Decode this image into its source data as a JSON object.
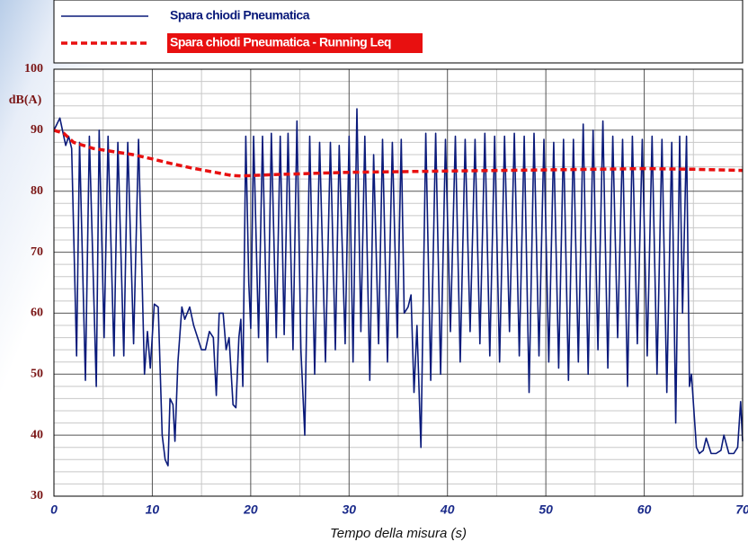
{
  "chart_data": {
    "type": "line",
    "xlabel": "Tempo della misura (s)",
    "ylabel": "dB(A)",
    "xlim": [
      0,
      70
    ],
    "ylim": [
      30,
      100
    ],
    "xticks": [
      0,
      10,
      20,
      30,
      40,
      50,
      60,
      70
    ],
    "yticks": [
      30,
      40,
      50,
      60,
      70,
      80,
      90,
      100
    ],
    "x_minor_ticks": [
      5,
      15,
      25,
      35,
      45,
      55,
      65
    ],
    "y_minor_ticks": [
      32,
      34,
      36,
      38,
      42,
      44,
      46,
      48,
      52,
      54,
      56,
      58,
      62,
      64,
      66,
      68,
      72,
      74,
      76,
      78,
      82,
      84,
      86,
      88,
      92,
      94,
      96,
      98
    ],
    "grid": true,
    "legend": "top",
    "series": [
      {
        "name": "Spara chiodi Pneumatica",
        "color": "#0a1a7a",
        "style": "solid",
        "x": [
          0,
          0.6,
          1.0,
          1.2,
          1.5,
          1.8,
          2.3,
          2.6,
          3.2,
          3.6,
          4.3,
          4.6,
          5.1,
          5.5,
          6.1,
          6.5,
          7.1,
          7.5,
          8.1,
          8.6,
          9.2,
          9.5,
          9.8,
          10.2,
          10.6,
          11.0,
          11.3,
          11.6,
          11.8,
          12.1,
          12.3,
          12.6,
          13.0,
          13.3,
          13.8,
          14.2,
          14.6,
          15.0,
          15.4,
          15.8,
          16.2,
          16.5,
          16.8,
          17.2,
          17.5,
          17.8,
          18.2,
          18.5,
          18.8,
          19.0,
          19.2,
          19.5,
          19.8,
          20.0,
          20.3,
          20.8,
          21.2,
          21.7,
          22.1,
          22.6,
          23.0,
          23.4,
          23.8,
          24.3,
          24.7,
          25.1,
          25.5,
          26.0,
          26.5,
          27.0,
          27.6,
          28.1,
          28.6,
          29.0,
          29.6,
          30.0,
          30.4,
          30.8,
          31.2,
          31.6,
          32.1,
          32.5,
          33.0,
          33.4,
          33.9,
          34.4,
          34.9,
          35.3,
          35.6,
          36.0,
          36.3,
          36.6,
          36.9,
          37.3,
          37.8,
          38.3,
          38.8,
          39.3,
          39.8,
          40.3,
          40.8,
          41.3,
          41.8,
          42.3,
          42.8,
          43.3,
          43.8,
          44.3,
          44.8,
          45.3,
          45.8,
          46.3,
          46.8,
          47.3,
          47.8,
          48.3,
          48.8,
          49.3,
          49.8,
          50.3,
          50.8,
          51.3,
          51.8,
          52.3,
          52.8,
          53.3,
          53.8,
          54.3,
          54.8,
          55.3,
          55.8,
          56.3,
          56.8,
          57.3,
          57.8,
          58.3,
          58.8,
          59.3,
          59.8,
          60.3,
          60.8,
          61.3,
          61.8,
          62.3,
          62.8,
          63.2,
          63.6,
          63.9,
          64.3,
          64.6,
          64.8,
          65.3,
          65.6,
          66.0,
          66.3,
          66.8,
          67.3,
          67.8,
          68.1,
          68.6,
          69.1,
          69.5,
          69.8,
          70.0
        ],
        "values": [
          90,
          92,
          89,
          87.5,
          89,
          87,
          53,
          88,
          49,
          89,
          48,
          90,
          56,
          89,
          53,
          88,
          53,
          88,
          55,
          88.5,
          50,
          57,
          51,
          61.5,
          61,
          40,
          36,
          35,
          46,
          45,
          39,
          52,
          61,
          59,
          61,
          58,
          56,
          54,
          54,
          57,
          56,
          46.5,
          60,
          60,
          54,
          56,
          45,
          44.5,
          56,
          59,
          48,
          89,
          65,
          57.5,
          89,
          56,
          89,
          52,
          89.5,
          56,
          89,
          56.5,
          89.5,
          54,
          91.5,
          54,
          40,
          89,
          50,
          88,
          52,
          88,
          54,
          87.5,
          55,
          89,
          52,
          93.5,
          57,
          89,
          49,
          86,
          55,
          88.5,
          52,
          88,
          56,
          88.5,
          60,
          61,
          63,
          47,
          58,
          38,
          89.5,
          49,
          89.5,
          50,
          88.5,
          57,
          89,
          52,
          88.5,
          57,
          88.5,
          55,
          89.5,
          53,
          89,
          52,
          89,
          57,
          89.5,
          53,
          89,
          47,
          89.5,
          53,
          88.5,
          52,
          88,
          51,
          88.5,
          49,
          88.5,
          52,
          91,
          50,
          90,
          54,
          91.5,
          51,
          89,
          56,
          88.5,
          48,
          89,
          55,
          88.5,
          53,
          89,
          50,
          88.5,
          47,
          88,
          42,
          89,
          60,
          89,
          48,
          50,
          38,
          37,
          37.5,
          39.5,
          37,
          37,
          37.5,
          40,
          37,
          37,
          38,
          45.5,
          39
        ]
      },
      {
        "name": "Spara chiodi Pneumatica - Running Leq",
        "color": "#e81010",
        "style": "dashed",
        "x": [
          0,
          1,
          2,
          4,
          6,
          8,
          10,
          12,
          14,
          16,
          18,
          19,
          22,
          26,
          30,
          35,
          40,
          50,
          60,
          65,
          70
        ],
        "values": [
          90,
          89.5,
          88,
          87,
          86.5,
          86,
          85.3,
          84.5,
          83.8,
          83.2,
          82.6,
          82.5,
          82.7,
          82.9,
          83.1,
          83.2,
          83.3,
          83.5,
          83.7,
          83.6,
          83.4
        ]
      }
    ]
  }
}
